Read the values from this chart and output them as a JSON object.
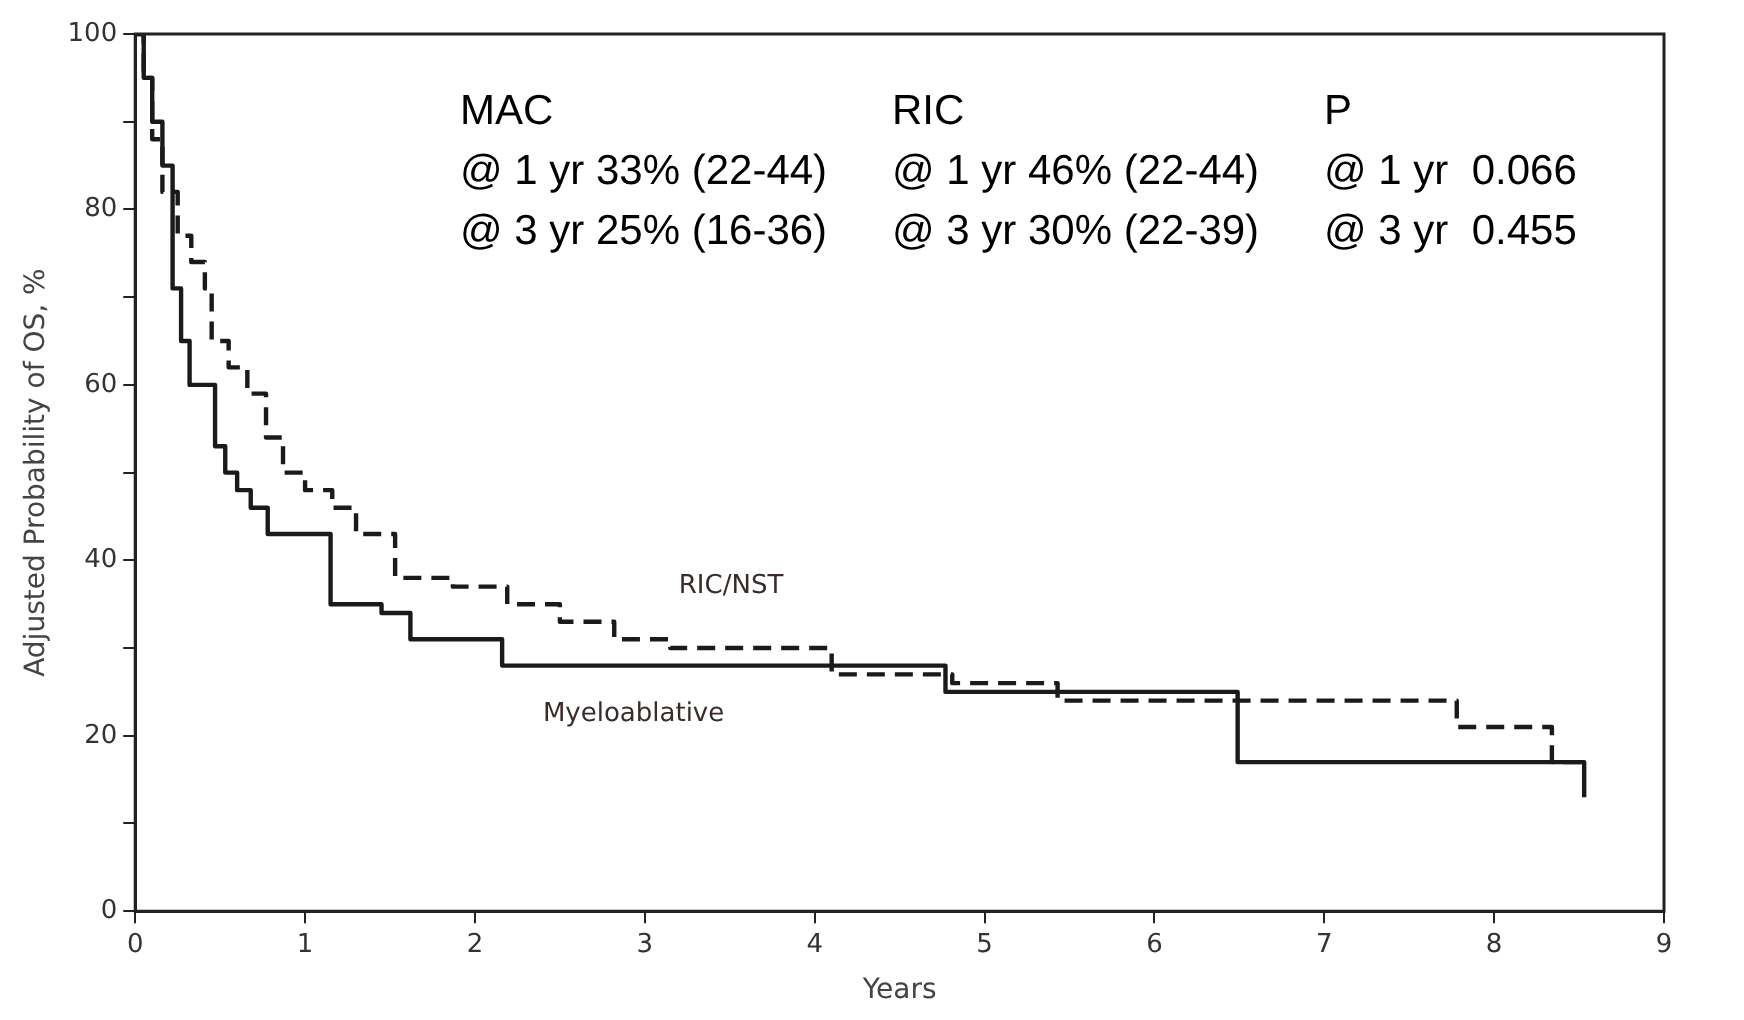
{
  "chart_data": {
    "type": "step",
    "xlabel": "Years",
    "ylabel": "Adjusted Probability of OS, %",
    "xlim": [
      0,
      9
    ],
    "xticks": [
      0,
      1,
      2,
      3,
      4,
      5,
      6,
      7,
      8,
      9
    ],
    "ylim": [
      0,
      100
    ],
    "yticks": [
      0,
      {
        "value": 10,
        "label": null
      },
      20,
      {
        "value": 30,
        "label": null
      },
      40,
      {
        "value": 50,
        "label": null
      },
      60,
      {
        "value": 70,
        "label": null
      },
      80,
      {
        "value": 90,
        "label": null
      },
      100
    ],
    "grid": false,
    "legend": false,
    "marker": "none",
    "series": [
      {
        "name": "RIC/NST",
        "color": "#1a1a1a",
        "line_style": "dashed",
        "x": [
          0,
          0.05,
          0.1,
          0.16,
          0.25,
          0.33,
          0.41,
          0.45,
          0.55,
          0.66,
          0.77,
          0.87,
          1.0,
          1.16,
          1.3,
          1.53,
          1.87,
          2.19,
          2.5,
          2.82,
          3.15,
          4.1,
          4.81,
          5.43,
          7.78,
          8.34,
          8.54
        ],
        "values": [
          100,
          95,
          88,
          82,
          77,
          74,
          71,
          65,
          62,
          59,
          54,
          50,
          48,
          46,
          43,
          38,
          37,
          35,
          33,
          31,
          30,
          27,
          26,
          24,
          21,
          17,
          17
        ]
      },
      {
        "name": "Myeloablative",
        "color": "#1a1a1a",
        "line_style": "solid",
        "x": [
          0,
          0.05,
          0.1,
          0.16,
          0.22,
          0.27,
          0.32,
          0.47,
          0.53,
          0.6,
          0.68,
          0.78,
          1.15,
          1.45,
          1.62,
          2.16,
          4.77,
          6.49,
          8.53
        ],
        "values": [
          100,
          95,
          90,
          85,
          71,
          65,
          60,
          53,
          50,
          48,
          46,
          43,
          35,
          34,
          31,
          28,
          25,
          17,
          13
        ]
      }
    ],
    "annotations": [
      "MAC",
      "@ 1 yr 33% (22-44)",
      "@ 3 yr 25% (16-36)",
      "RIC",
      "@ 1 yr 46% (22-44)",
      "@ 3 yr 30% (22-39)",
      "P",
      "@ 1 yr  0.066",
      "@ 3 yr  0.455"
    ]
  }
}
